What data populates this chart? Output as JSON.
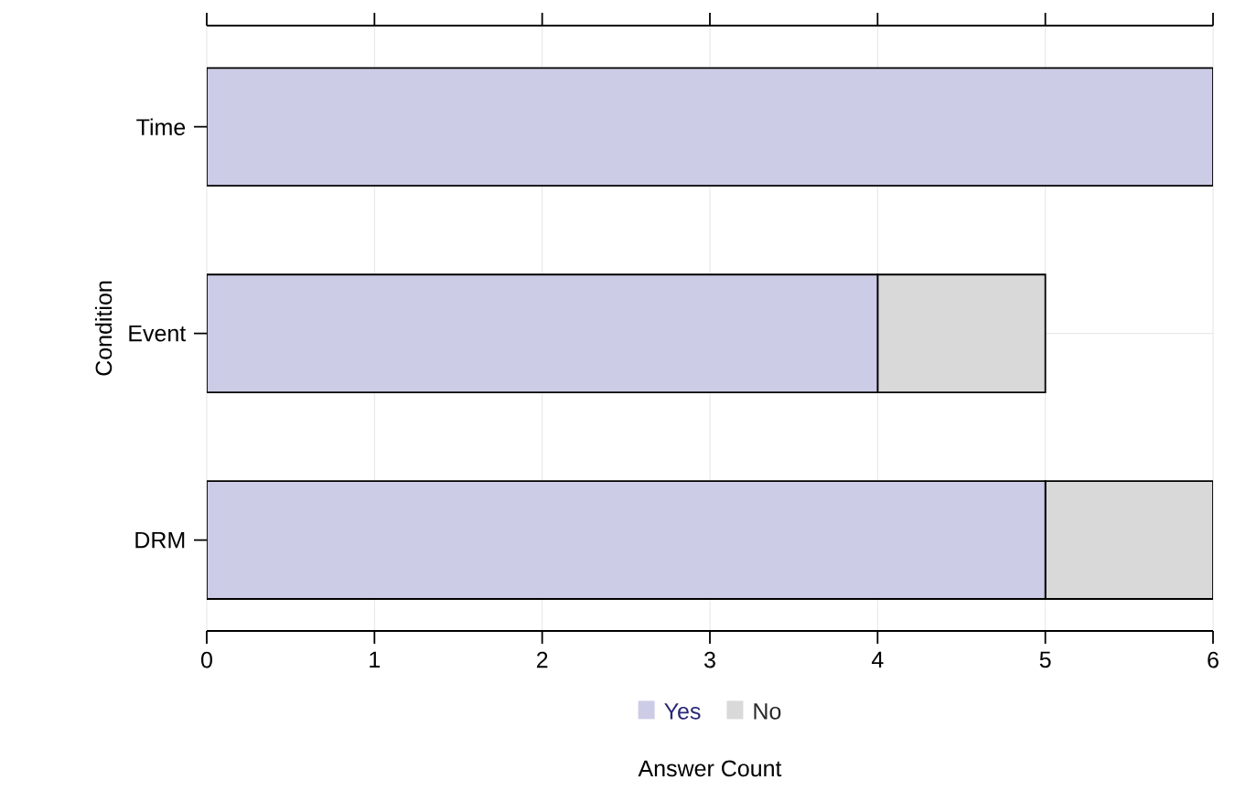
{
  "chart_data": {
    "type": "bar",
    "orientation": "horizontal",
    "stacked": true,
    "categories": [
      "Time",
      "Event",
      "DRM"
    ],
    "series": [
      {
        "name": "Yes",
        "color": "#cccce6",
        "values": [
          6,
          4,
          5
        ]
      },
      {
        "name": "No",
        "color": "#d9d9d9",
        "values": [
          0,
          1,
          1
        ]
      }
    ],
    "xlim": [
      0,
      6
    ],
    "xticks": [
      0,
      1,
      2,
      3,
      4,
      5,
      6
    ],
    "xlabel": "Answer Count",
    "ylabel": "Condition",
    "grid": true,
    "legend": "bottom"
  }
}
